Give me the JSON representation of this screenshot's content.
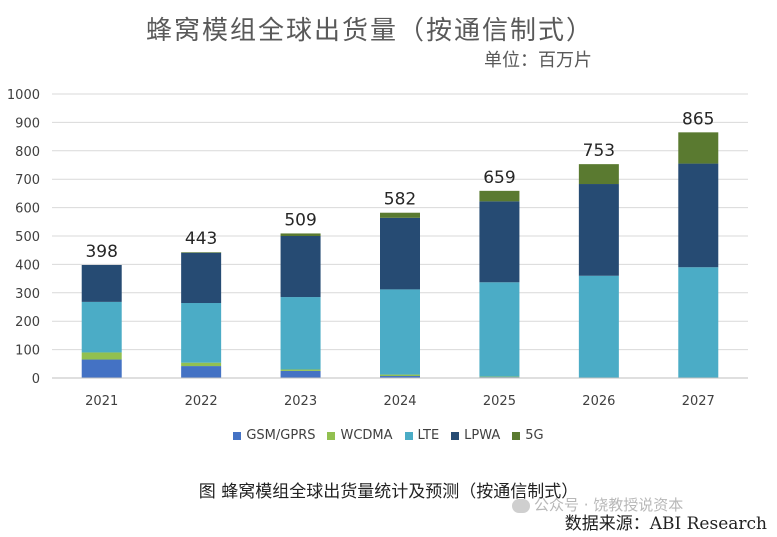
{
  "title": "蜂窝模组全球出货量（按通信制式）",
  "unit_label": "单位：百万片",
  "caption": "图 蜂窝模组全球出货量统计及预测（按通信制式）",
  "source": "数据来源：ABI Research",
  "watermark": "公众号 · 饶教授说资本",
  "chart_data": {
    "type": "bar",
    "stacked": true,
    "categories": [
      "2021",
      "2022",
      "2023",
      "2024",
      "2025",
      "2026",
      "2027"
    ],
    "ylim": [
      0,
      1000
    ],
    "yticks": [
      0,
      100,
      200,
      300,
      400,
      500,
      600,
      700,
      800,
      900,
      1000
    ],
    "grid": true,
    "legend_position": "bottom",
    "totals": [
      "398",
      "443",
      "509",
      "582",
      "659",
      "753",
      "865"
    ],
    "series": [
      {
        "name": "GSM/GPRS",
        "color": "#4472c4",
        "values": [
          65,
          42,
          25,
          7,
          3,
          1,
          0
        ]
      },
      {
        "name": "WCDMA",
        "color": "#92c050",
        "values": [
          25,
          12,
          5,
          5,
          2,
          0,
          0
        ]
      },
      {
        "name": "LTE",
        "color": "#4bacc6",
        "values": [
          178,
          210,
          255,
          300,
          332,
          359,
          390
        ]
      },
      {
        "name": "LPWA",
        "color": "#264b73",
        "values": [
          130,
          177,
          215,
          252,
          285,
          323,
          365
        ]
      },
      {
        "name": "5G",
        "color": "#5a7a30",
        "values": [
          0,
          2,
          9,
          18,
          37,
          70,
          110
        ]
      }
    ]
  }
}
